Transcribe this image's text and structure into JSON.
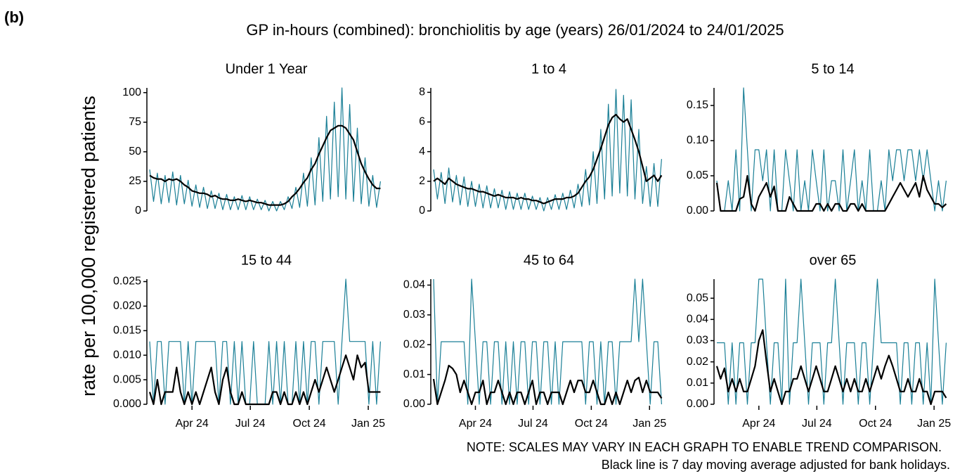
{
  "chart_data": {
    "type": "line",
    "panel_label": "(b)",
    "title": "GP in-hours (combined): bronchiolitis by age (years) 26/01/2024 to 24/01/2025",
    "ylabel": "rate per 100,000 registered patients",
    "notes": [
      "NOTE: SCALES MAY VARY IN EACH GRAPH TO ENABLE TREND COMPARISON.",
      "Black line is 7 day moving average adjusted for bank holidays."
    ],
    "x": [
      0,
      6,
      12,
      18,
      24,
      30,
      36,
      42,
      48,
      54,
      60,
      66,
      72,
      78,
      84,
      90,
      96,
      102,
      108,
      114,
      120,
      126,
      132,
      138,
      144,
      150,
      156,
      162,
      168,
      174,
      180,
      186,
      192,
      198,
      204,
      210,
      216,
      222,
      228,
      234,
      240,
      246,
      252,
      258,
      264,
      270,
      276,
      282,
      288,
      294,
      300,
      306,
      312,
      318,
      324,
      330,
      336,
      342,
      348,
      354,
      360
    ],
    "xlim": [
      0,
      364
    ],
    "xticks": [
      {
        "value": 66,
        "label": "Apr 24"
      },
      {
        "value": 157,
        "label": "Jul 24"
      },
      {
        "value": 249,
        "label": "Oct 24"
      },
      {
        "value": 341,
        "label": "Jan 25"
      }
    ],
    "panels": [
      {
        "title": "Under 1 Year",
        "ylim": [
          0,
          104
        ],
        "yticks": [
          0,
          25,
          50,
          75,
          100
        ],
        "series": [
          {
            "color": "#1a7f96",
            "values": [
              35,
              8,
              32,
              6,
              30,
              7,
              33,
              5,
              30,
              6,
              26,
              4,
              22,
              3,
              20,
              2,
              17,
              2,
              15,
              1,
              14,
              1,
              12,
              1,
              13,
              1,
              12,
              1,
              10,
              1,
              9,
              0,
              8,
              0,
              8,
              1,
              12,
              2,
              20,
              3,
              32,
              4,
              45,
              5,
              62,
              8,
              80,
              10,
              92,
              12,
              104,
              10,
              90,
              8,
              70,
              6,
              45,
              4,
              30,
              3,
              25
            ]
          },
          {
            "color": "#000000",
            "values": [
              30,
              28,
              27,
              27,
              25,
              27,
              26,
              27,
              25,
              22,
              20,
              17,
              16,
              15,
              15,
              14,
              12,
              13,
              11,
              10,
              10,
              9,
              9,
              10,
              9,
              8,
              9,
              8,
              7,
              7,
              6,
              5,
              5,
              5,
              5,
              6,
              8,
              12,
              15,
              19,
              24,
              28,
              35,
              40,
              48,
              55,
              62,
              68,
              70,
              72,
              72,
              70,
              65,
              60,
              50,
              40,
              33,
              27,
              22,
              19,
              19
            ]
          }
        ]
      },
      {
        "title": "1 to 4",
        "ylim": [
          0,
          8.3
        ],
        "yticks": [
          0,
          2,
          4,
          6,
          8
        ],
        "series": [
          {
            "color": "#1a7f96",
            "values": [
              2.8,
              0.8,
              2.6,
              0.5,
              2.9,
              0.6,
              2.4,
              0.4,
              2.3,
              0.3,
              2.0,
              0.3,
              1.8,
              0.2,
              1.7,
              0.2,
              1.5,
              0.2,
              1.4,
              0.1,
              1.3,
              0.1,
              1.2,
              0.1,
              1.2,
              0.1,
              1.0,
              0.1,
              0.9,
              0,
              0.9,
              0.1,
              1.1,
              0.1,
              1.2,
              0.1,
              1.4,
              0.2,
              1.8,
              0.3,
              2.8,
              0.4,
              4.0,
              0.5,
              5.5,
              0.8,
              7.2,
              1.0,
              8.2,
              1.2,
              7.8,
              1.0,
              7.5,
              0.8,
              5.5,
              0.5,
              3.0,
              0.3,
              3.2,
              0.3,
              3.5
            ]
          },
          {
            "color": "#000000",
            "values": [
              2.0,
              2.2,
              2.0,
              1.8,
              2.2,
              2.0,
              1.8,
              1.7,
              1.6,
              1.5,
              1.5,
              1.4,
              1.3,
              1.3,
              1.2,
              1.1,
              1.0,
              1.1,
              1.0,
              0.9,
              0.9,
              0.9,
              0.8,
              0.9,
              0.8,
              0.8,
              0.7,
              0.7,
              0.6,
              0.5,
              0.6,
              0.7,
              0.8,
              0.8,
              0.8,
              0.9,
              0.9,
              1.0,
              1.2,
              1.6,
              2.0,
              2.3,
              2.8,
              3.5,
              4.2,
              5.0,
              5.8,
              6.3,
              6.5,
              6.2,
              6.0,
              6.2,
              5.5,
              4.8,
              4.0,
              3.0,
              2.0,
              2.2,
              2.4,
              2.0,
              2.4
            ]
          }
        ]
      },
      {
        "title": "5 to 14",
        "ylim": [
          0,
          0.175
        ],
        "yticks": [
          {
            "value": 0,
            "label": "0.00"
          },
          {
            "value": 0.05,
            "label": "0.05"
          },
          {
            "value": 0.1,
            "label": "0.10"
          },
          {
            "value": 0.15,
            "label": "0.15"
          }
        ],
        "series": [
          {
            "color": "#1a7f96",
            "values": [
              0.043,
              0,
              0,
              0.043,
              0,
              0.087,
              0,
              0.175,
              0.087,
              0,
              0.087,
              0.087,
              0.043,
              0.087,
              0,
              0.087,
              0,
              0,
              0.087,
              0.043,
              0,
              0.087,
              0,
              0.043,
              0,
              0.087,
              0.043,
              0,
              0.087,
              0,
              0.043,
              0.043,
              0,
              0.087,
              0,
              0.043,
              0.087,
              0,
              0.043,
              0,
              0.087,
              0,
              0,
              0.043,
              0,
              0.087,
              0.043,
              0.087,
              0.087,
              0.043,
              0.087,
              0.087,
              0.043,
              0.087,
              0.043,
              0.087,
              0.043,
              0,
              0.043,
              0,
              0.043
            ]
          },
          {
            "color": "#000000",
            "values": [
              0.04,
              0,
              0,
              0,
              0,
              0,
              0.017,
              0.02,
              0.05,
              0.01,
              0,
              0.02,
              0.03,
              0.04,
              0.02,
              0.035,
              0,
              0,
              0,
              0.02,
              0.01,
              0,
              0,
              0,
              0,
              0,
              0.01,
              0.01,
              0,
              0.01,
              0,
              0.01,
              0.01,
              0,
              0,
              0.01,
              0.01,
              0,
              0.01,
              0,
              0,
              0,
              0,
              0,
              0,
              0.01,
              0.02,
              0.03,
              0.04,
              0.03,
              0.02,
              0.03,
              0.04,
              0.02,
              0.05,
              0.03,
              0.02,
              0.01,
              0.01,
              0.005,
              0.01
            ]
          }
        ]
      },
      {
        "title": "15 to 44",
        "ylim": [
          0,
          0.0255
        ],
        "yticks": [
          {
            "value": 0,
            "label": "0.000"
          },
          {
            "value": 0.005,
            "label": "0.005"
          },
          {
            "value": 0.01,
            "label": "0.010"
          },
          {
            "value": 0.015,
            "label": "0.015"
          },
          {
            "value": 0.02,
            "label": "0.020"
          },
          {
            "value": 0.025,
            "label": "0.025"
          }
        ],
        "series": [
          {
            "color": "#1a7f96",
            "values": [
              0.0128,
              0,
              0.0128,
              0.0128,
              0,
              0.0128,
              0.0128,
              0.0128,
              0.0128,
              0,
              0.0128,
              0,
              0.0128,
              0.0128,
              0.0128,
              0.0128,
              0.0128,
              0.0128,
              0,
              0.0128,
              0.0128,
              0,
              0.0128,
              0,
              0.0128,
              0,
              0,
              0.0128,
              0,
              0,
              0,
              0.0128,
              0,
              0.0128,
              0,
              0.0128,
              0,
              0,
              0.0128,
              0,
              0.0128,
              0,
              0.0128,
              0.0128,
              0,
              0.0128,
              0.0128,
              0.0128,
              0.0128,
              0,
              0.0128,
              0.0255,
              0.0128,
              0.0128,
              0.0128,
              0.0128,
              0.0128,
              0,
              0.0128,
              0,
              0.0128
            ]
          },
          {
            "color": "#000000",
            "values": [
              0.0025,
              0,
              0.005,
              0,
              0.0025,
              0.0025,
              0.0025,
              0.0075,
              0.0025,
              0,
              0.0025,
              0,
              0.0025,
              0,
              0.0025,
              0.005,
              0.0075,
              0.0025,
              0,
              0.005,
              0.0075,
              0.0025,
              0,
              0,
              0.0025,
              0,
              0,
              0,
              0,
              0,
              0,
              0,
              0.0025,
              0.0025,
              0,
              0.0025,
              0,
              0,
              0.0025,
              0,
              0.0025,
              0,
              0.0025,
              0.005,
              0.0025,
              0.005,
              0.0075,
              0.005,
              0.0025,
              0.005,
              0.0075,
              0.01,
              0.0075,
              0.005,
              0.01,
              0.0075,
              0.0085,
              0.0025,
              0.0025,
              0.0025,
              0.0025
            ]
          }
        ]
      },
      {
        "title": "45 to 64",
        "ylim": [
          0,
          0.042
        ],
        "yticks": [
          {
            "value": 0,
            "label": "0.00"
          },
          {
            "value": 0.01,
            "label": "0.01"
          },
          {
            "value": 0.02,
            "label": "0.02"
          },
          {
            "value": 0.03,
            "label": "0.03"
          },
          {
            "value": 0.04,
            "label": "0.04"
          }
        ],
        "series": [
          {
            "color": "#1a7f96",
            "values": [
              0.042,
              0,
              0.021,
              0.021,
              0.021,
              0.021,
              0.021,
              0.021,
              0.021,
              0,
              0.042,
              0.021,
              0,
              0.021,
              0.021,
              0,
              0.021,
              0.021,
              0,
              0.021,
              0,
              0.021,
              0,
              0.021,
              0.021,
              0,
              0.021,
              0.021,
              0,
              0.021,
              0.021,
              0,
              0.021,
              0,
              0.021,
              0.021,
              0.021,
              0.021,
              0.021,
              0.021,
              0,
              0.021,
              0.021,
              0,
              0.021,
              0,
              0.021,
              0.021,
              0,
              0.021,
              0.021,
              0.021,
              0.021,
              0.042,
              0.021,
              0.042,
              0.021,
              0,
              0.021,
              0.021,
              0
            ]
          },
          {
            "color": "#000000",
            "values": [
              0.0085,
              0,
              0.004,
              0.008,
              0.013,
              0.012,
              0.01,
              0.004,
              0.008,
              0.004,
              0,
              0.004,
              0.004,
              0.008,
              0,
              0.004,
              0.004,
              0.008,
              0.004,
              0,
              0.004,
              0,
              0.004,
              0.004,
              0,
              0.004,
              0.008,
              0,
              0.004,
              0.004,
              0,
              0.004,
              0.004,
              0.004,
              0,
              0.004,
              0.008,
              0.004,
              0.008,
              0.008,
              0.004,
              0.004,
              0.008,
              0.004,
              0,
              0,
              0.004,
              0,
              0.004,
              0,
              0.004,
              0.008,
              0.004,
              0.008,
              0.009,
              0.004,
              0.008,
              0.004,
              0.004,
              0.004,
              0.002
            ]
          }
        ]
      },
      {
        "title": "over 65",
        "ylim": [
          0,
          0.059
        ],
        "yticks": [
          {
            "value": 0,
            "label": "0.00"
          },
          {
            "value": 0.01,
            "label": "0.01"
          },
          {
            "value": 0.02,
            "label": "0.02"
          },
          {
            "value": 0.03,
            "label": "0.03"
          },
          {
            "value": 0.04,
            "label": "0.04"
          },
          {
            "value": 0.05,
            "label": "0.05"
          }
        ],
        "series": [
          {
            "color": "#1a7f96",
            "values": [
              0.029,
              0.029,
              0.029,
              0,
              0.029,
              0,
              0.029,
              0.029,
              0,
              0.029,
              0.029,
              0.059,
              0.059,
              0.029,
              0,
              0.029,
              0.029,
              0,
              0.059,
              0,
              0.029,
              0.029,
              0.059,
              0.029,
              0,
              0.029,
              0.029,
              0.029,
              0,
              0.029,
              0.029,
              0.059,
              0.029,
              0,
              0.029,
              0.029,
              0.029,
              0,
              0.029,
              0.029,
              0,
              0.029,
              0.059,
              0.029,
              0.029,
              0.029,
              0.029,
              0.029,
              0,
              0.029,
              0.029,
              0,
              0.029,
              0.029,
              0,
              0.029,
              0,
              0.059,
              0.029,
              0,
              0.029
            ]
          },
          {
            "color": "#000000",
            "values": [
              0.018,
              0.012,
              0.017,
              0.006,
              0.012,
              0.006,
              0.012,
              0.006,
              0.006,
              0.012,
              0.018,
              0.03,
              0.035,
              0.02,
              0.006,
              0.012,
              0.006,
              0,
              0.006,
              0.006,
              0.012,
              0.012,
              0.018,
              0.012,
              0.006,
              0.012,
              0.018,
              0.012,
              0.006,
              0.006,
              0.012,
              0.018,
              0.012,
              0.006,
              0.012,
              0.006,
              0.012,
              0.006,
              0.006,
              0.012,
              0.006,
              0.012,
              0.018,
              0.012,
              0.018,
              0.023,
              0.018,
              0.012,
              0.006,
              0.006,
              0.012,
              0.006,
              0.006,
              0.012,
              0.006,
              0.006,
              0,
              0.006,
              0.006,
              0.006,
              0.003
            ]
          }
        ]
      }
    ]
  }
}
